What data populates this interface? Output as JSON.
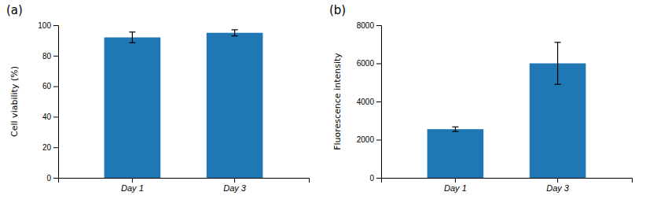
{
  "chart_data": [
    {
      "type": "bar",
      "title": "(a)",
      "categories": [
        "Day 1",
        "Day 3"
      ],
      "values": [
        92,
        95
      ],
      "errors": [
        3.5,
        2.0
      ],
      "ylabel": "Cell viability (%)",
      "ylim": [
        0,
        100
      ],
      "yticks": [
        0,
        20,
        40,
        60,
        80,
        100
      ]
    },
    {
      "type": "bar",
      "title": "(b)",
      "categories": [
        "Day 1",
        "Day 3"
      ],
      "values": [
        2550,
        6000
      ],
      "errors": [
        120,
        1100
      ],
      "ylabel": "Fluorescence intensity",
      "ylim": [
        0,
        8000
      ],
      "yticks": [
        0,
        2000,
        4000,
        6000,
        8000
      ]
    }
  ]
}
